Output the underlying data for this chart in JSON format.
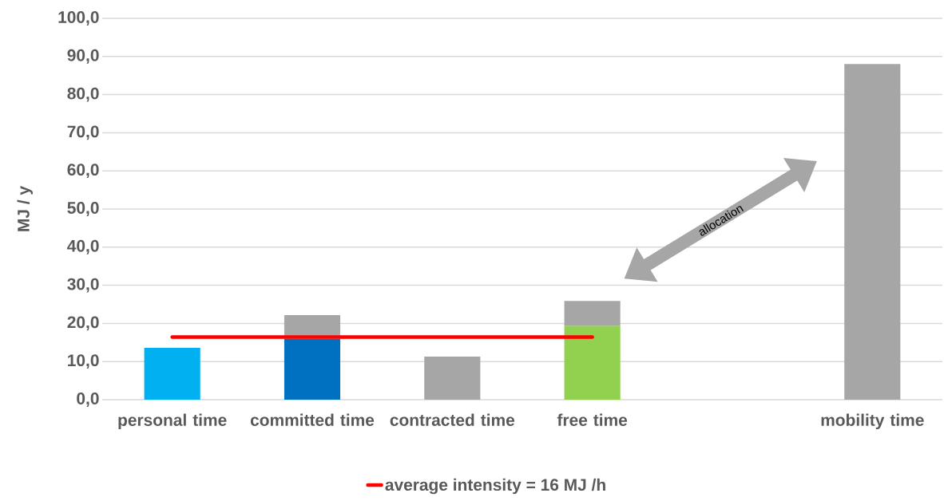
{
  "chart_data": {
    "type": "bar",
    "stacked": true,
    "ylabel": "MJ / y",
    "categories": [
      "personal time",
      "committed time",
      "contracted time",
      "free time",
      null,
      "mobility time"
    ],
    "series": [
      {
        "colors": [
          "#00b0f0",
          "#0070c0",
          "#a6a6a6",
          "#92d050",
          "#a6a6a6",
          "#a6a6a6"
        ],
        "values": [
          13.6,
          16.0,
          null,
          19.4,
          null,
          null
        ]
      },
      {
        "color": "#a6a6a6",
        "values": [
          null,
          6.2,
          11.3,
          6.5,
          null,
          88.0
        ]
      },
      {
        "type": "line",
        "name": "average intensity = 16 MJ /h",
        "color": "#ff0000",
        "values": [
          16.4,
          16.4,
          16.4,
          16.4,
          null,
          null
        ]
      }
    ],
    "ylim": [
      0,
      100
    ],
    "yticks": [
      {
        "value": 0,
        "label": "0,0"
      },
      {
        "value": 10,
        "label": "10,0"
      },
      {
        "value": 20,
        "label": "20,0"
      },
      {
        "value": 30,
        "label": "30,0"
      },
      {
        "value": 40,
        "label": "40,0"
      },
      {
        "value": 50,
        "label": "50,0"
      },
      {
        "value": 60,
        "label": "60,0"
      },
      {
        "value": 70,
        "label": "70,0"
      },
      {
        "value": 80,
        "label": "80,0"
      },
      {
        "value": 90,
        "label": "90,0"
      },
      {
        "value": 100,
        "label": "100,0"
      }
    ],
    "grid": "y",
    "legend": "bottom",
    "marker": "none",
    "annotations": [
      "allocation"
    ]
  }
}
